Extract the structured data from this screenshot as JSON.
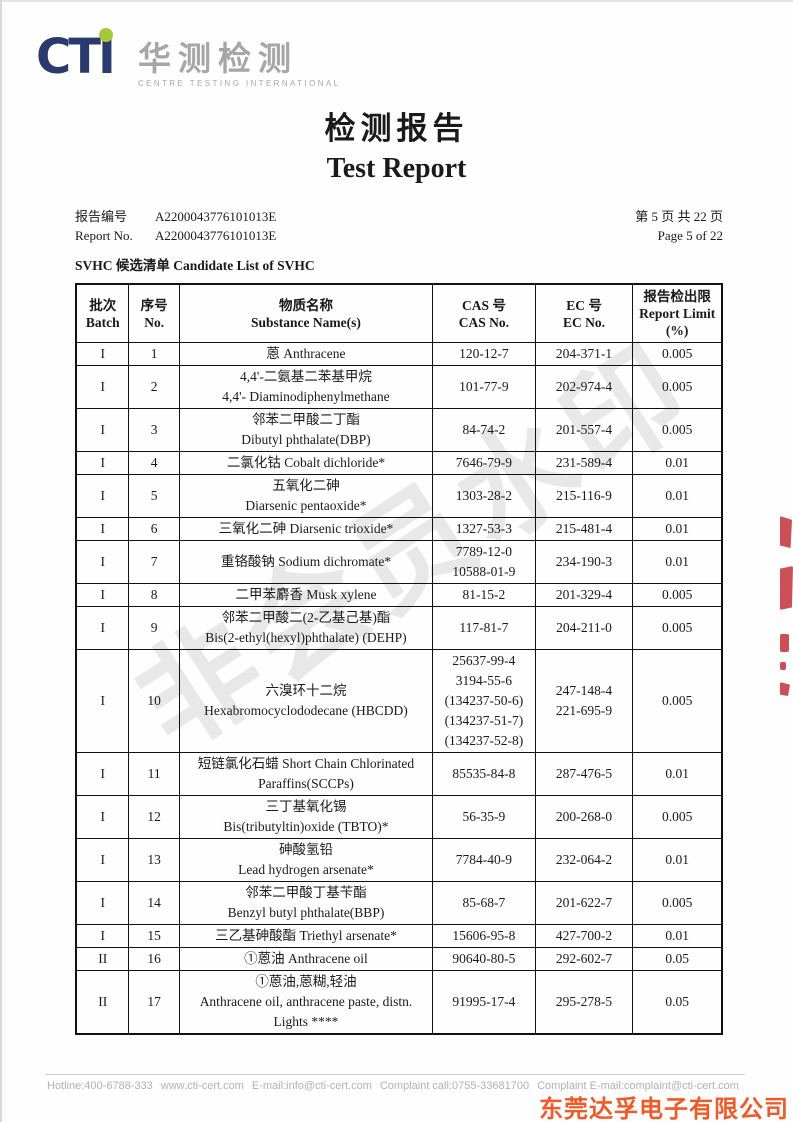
{
  "logo": {
    "text": "CTI",
    "chinese": "华测检测",
    "subtitle": "CENTRE TESTING INTERNATIONAL",
    "navy": "#2b3a6e",
    "green": "#a5c93c",
    "gray": "#a6a6a6"
  },
  "title": {
    "zh": "检测报告",
    "en": "Test Report"
  },
  "meta": {
    "report_label_zh": "报告编号",
    "report_label_en": "Report No.",
    "report_no_zh": "A2200043776101013E",
    "report_no_en": "A2200043776101013E",
    "page_zh": "第 5 页  共 22 页",
    "page_en": "Page 5 of 22"
  },
  "section_title": "SVHC 候选清单 Candidate List of SVHC",
  "watermark": {
    "text": "非会员水印"
  },
  "table": {
    "headers": {
      "batch": {
        "zh": "批次",
        "en": "Batch"
      },
      "no": {
        "zh": "序号",
        "en": "No."
      },
      "substance": {
        "zh": "物质名称",
        "en": "Substance Name(s)"
      },
      "cas": {
        "zh": "CAS 号",
        "en": "CAS No."
      },
      "ec": {
        "zh": "EC 号",
        "en": "EC No."
      },
      "limit": {
        "zh": "报告检出限",
        "en": "Report Limit",
        "unit": "(%)"
      }
    },
    "rows": [
      {
        "batch": "I",
        "no": "1",
        "substance": [
          "蒽 Anthracene"
        ],
        "cas": [
          "120-12-7"
        ],
        "ec": [
          "204-371-1"
        ],
        "limit": "0.005"
      },
      {
        "batch": "I",
        "no": "2",
        "substance": [
          "4,4'-二氨基二苯基甲烷",
          "4,4'- Diaminodiphenylmethane"
        ],
        "cas": [
          "101-77-9"
        ],
        "ec": [
          "202-974-4"
        ],
        "limit": "0.005"
      },
      {
        "batch": "I",
        "no": "3",
        "substance": [
          "邻苯二甲酸二丁酯",
          "Dibutyl phthalate(DBP)"
        ],
        "cas": [
          "84-74-2"
        ],
        "ec": [
          "201-557-4"
        ],
        "limit": "0.005"
      },
      {
        "batch": "I",
        "no": "4",
        "substance": [
          "二氯化钴 Cobalt dichloride*"
        ],
        "cas": [
          "7646-79-9"
        ],
        "ec": [
          "231-589-4"
        ],
        "limit": "0.01"
      },
      {
        "batch": "I",
        "no": "5",
        "substance": [
          "五氧化二砷",
          "Diarsenic pentaoxide*"
        ],
        "cas": [
          "1303-28-2"
        ],
        "ec": [
          "215-116-9"
        ],
        "limit": "0.01"
      },
      {
        "batch": "I",
        "no": "6",
        "substance": [
          "三氧化二砷 Diarsenic trioxide*"
        ],
        "cas": [
          "1327-53-3"
        ],
        "ec": [
          "215-481-4"
        ],
        "limit": "0.01"
      },
      {
        "batch": "I",
        "no": "7",
        "substance": [
          "重铬酸钠 Sodium dichromate*"
        ],
        "cas": [
          "7789-12-0",
          "10588-01-9"
        ],
        "ec": [
          "234-190-3"
        ],
        "limit": "0.01"
      },
      {
        "batch": "I",
        "no": "8",
        "substance": [
          "二甲苯麝香 Musk xylene"
        ],
        "cas": [
          "81-15-2"
        ],
        "ec": [
          "201-329-4"
        ],
        "limit": "0.005"
      },
      {
        "batch": "I",
        "no": "9",
        "substance": [
          "邻苯二甲酸二(2-乙基己基)酯",
          "Bis(2-ethyl(hexyl)phthalate) (DEHP)"
        ],
        "cas": [
          "117-81-7"
        ],
        "ec": [
          "204-211-0"
        ],
        "limit": "0.005"
      },
      {
        "batch": "I",
        "no": "10",
        "substance": [
          "六溴环十二烷",
          "Hexabromocyclododecane (HBCDD)"
        ],
        "cas": [
          "25637-99-4",
          "3194-55-6",
          "(134237-50-6)",
          "(134237-51-7)",
          "(134237-52-8)"
        ],
        "ec": [
          "247-148-4",
          "221-695-9"
        ],
        "limit": "0.005"
      },
      {
        "batch": "I",
        "no": "11",
        "substance": [
          "短链氯化石蜡 Short Chain Chlorinated",
          "Paraffins(SCCPs)"
        ],
        "cas": [
          "85535-84-8"
        ],
        "ec": [
          "287-476-5"
        ],
        "limit": "0.01"
      },
      {
        "batch": "I",
        "no": "12",
        "substance": [
          "三丁基氧化锡",
          "Bis(tributyltin)oxide (TBTO)*"
        ],
        "cas": [
          "56-35-9"
        ],
        "ec": [
          "200-268-0"
        ],
        "limit": "0.005"
      },
      {
        "batch": "I",
        "no": "13",
        "substance": [
          "砷酸氢铅",
          "Lead hydrogen arsenate*"
        ],
        "cas": [
          "7784-40-9"
        ],
        "ec": [
          "232-064-2"
        ],
        "limit": "0.01"
      },
      {
        "batch": "I",
        "no": "14",
        "substance": [
          "邻苯二甲酸丁基苄酯",
          "Benzyl butyl phthalate(BBP)"
        ],
        "cas": [
          "85-68-7"
        ],
        "ec": [
          "201-622-7"
        ],
        "limit": "0.005"
      },
      {
        "batch": "I",
        "no": "15",
        "substance": [
          "三乙基砷酸酯 Triethyl arsenate*"
        ],
        "cas": [
          "15606-95-8"
        ],
        "ec": [
          "427-700-2"
        ],
        "limit": "0.01"
      },
      {
        "batch": "II",
        "no": "16",
        "substance": [
          "①蒽油 Anthracene oil"
        ],
        "cas": [
          "90640-80-5"
        ],
        "ec": [
          "292-602-7"
        ],
        "limit": "0.05"
      },
      {
        "batch": "II",
        "no": "17",
        "substance": [
          "①蒽油,蒽糊,轻油",
          "Anthracene oil, anthracene paste, distn.",
          "Lights ****"
        ],
        "cas": [
          "91995-17-4"
        ],
        "ec": [
          "295-278-5"
        ],
        "limit": "0.05"
      }
    ]
  },
  "footer": {
    "items": [
      "Hotline:400-6788-333",
      "www.cti-cert.com",
      "E-mail:info@cti-cert.com",
      "Complaint call:0755-33681700",
      "Complaint E-mail:complaint@cti-cert.com"
    ],
    "company": "东莞达孚电子有限公司",
    "company_color": "#f05a28",
    "stamp_color": "#c2303a"
  }
}
